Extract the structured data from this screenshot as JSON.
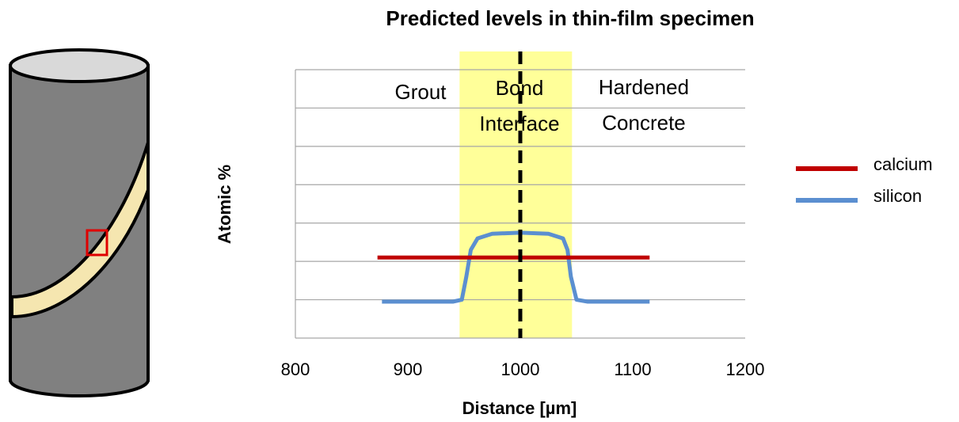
{
  "chart_data": {
    "type": "line",
    "title": "Predicted levels in thin-film specimen",
    "x_label": "Distance [µm]",
    "y_label": "Atomic %",
    "xlim": [
      800,
      1200
    ],
    "xticks": [
      800,
      900,
      1000,
      1100,
      1200
    ],
    "ylim": [
      0,
      7
    ],
    "yticks": [
      0,
      1,
      2,
      3,
      4,
      5,
      6,
      7
    ],
    "grid": true,
    "band": [
      946,
      1046
    ],
    "band_color": "#ffff99",
    "vline": 1000,
    "annotations": [
      [
        "Grout"
      ],
      [
        "Bond",
        "Interface"
      ],
      [
        "Hardened",
        "Concrete"
      ]
    ],
    "series": [
      {
        "name": "calcium",
        "color": "#c00000",
        "x": [
          873,
          1115
        ],
        "values": [
          2.1,
          2.1
        ]
      },
      {
        "name": "silicon",
        "color": "#5b8fd0",
        "x": [
          877,
          940,
          948,
          952,
          956,
          962,
          975,
          1000,
          1025,
          1038,
          1042,
          1045,
          1050,
          1060,
          1115
        ],
        "values": [
          0.95,
          0.95,
          1.0,
          1.6,
          2.3,
          2.6,
          2.72,
          2.75,
          2.72,
          2.6,
          2.3,
          1.6,
          1.0,
          0.95,
          0.95
        ]
      }
    ]
  }
}
